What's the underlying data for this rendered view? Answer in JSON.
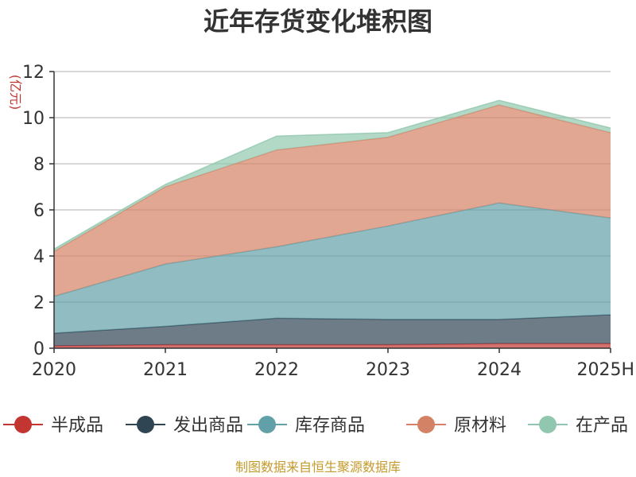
{
  "chart_data": {
    "type": "area",
    "stacked": true,
    "title": "近年存货变化堆积图",
    "ylabel": "(亿元)",
    "xlabel": "",
    "categories": [
      "2020",
      "2021",
      "2022",
      "2023",
      "2024",
      "2025H"
    ],
    "ylim": [
      0,
      12
    ],
    "yticks": [
      "0",
      "2",
      "4",
      "6",
      "8",
      "10",
      "12"
    ],
    "grid": true,
    "legend_position": "bottom",
    "series": [
      {
        "name": "半成品",
        "color": "#c23531",
        "values": [
          0.1,
          0.15,
          0.15,
          0.15,
          0.2,
          0.2
        ]
      },
      {
        "name": "发出商品",
        "color": "#2f4554",
        "values": [
          0.55,
          0.8,
          1.15,
          1.1,
          1.05,
          1.25
        ]
      },
      {
        "name": "库存商品",
        "color": "#61a0a8",
        "values": [
          1.6,
          2.7,
          3.1,
          4.05,
          5.05,
          4.2
        ]
      },
      {
        "name": "原材料",
        "color": "#d48265",
        "values": [
          1.95,
          3.35,
          4.2,
          3.85,
          4.25,
          3.7
        ]
      },
      {
        "name": "在产品",
        "color": "#91c7ae",
        "values": [
          0.1,
          0.1,
          0.6,
          0.2,
          0.2,
          0.2
        ]
      }
    ]
  },
  "source_text": "制图数据来自恒生聚源数据库"
}
